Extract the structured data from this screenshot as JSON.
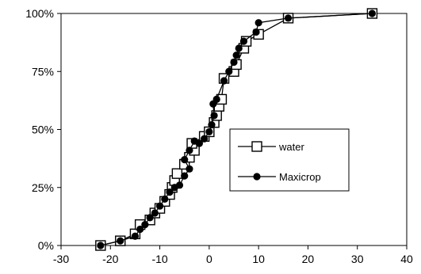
{
  "chart_data": {
    "type": "line",
    "title": "",
    "xlabel": "",
    "ylabel": "",
    "xlim": [
      -30,
      40
    ],
    "ylim": [
      0,
      100
    ],
    "x_ticks": [
      "-30",
      "-20",
      "-10",
      "0",
      "10",
      "20",
      "30",
      "40"
    ],
    "y_ticks": [
      "0%",
      "25%",
      "50%",
      "75%",
      "100%"
    ],
    "legend_position": "center-right",
    "grid": false,
    "series": [
      {
        "name": "water",
        "marker": "open-square",
        "color": "#000000",
        "points": [
          [
            -22,
            0
          ],
          [
            -18,
            2
          ],
          [
            -15,
            5
          ],
          [
            -14,
            9
          ],
          [
            -12,
            11
          ],
          [
            -11,
            14
          ],
          [
            -10,
            16
          ],
          [
            -9,
            19
          ],
          [
            -8,
            22
          ],
          [
            -7.5,
            25
          ],
          [
            -7,
            28
          ],
          [
            -6.5,
            31
          ],
          [
            -5,
            35
          ],
          [
            -4,
            38
          ],
          [
            -3,
            41
          ],
          [
            -3.5,
            44
          ],
          [
            -1,
            47
          ],
          [
            0,
            49
          ],
          [
            1,
            53
          ],
          [
            1.5,
            56
          ],
          [
            2,
            60
          ],
          [
            2.5,
            63
          ],
          [
            3,
            72
          ],
          [
            5,
            75
          ],
          [
            5.5,
            78
          ],
          [
            7,
            85
          ],
          [
            7.5,
            88
          ],
          [
            10,
            91
          ],
          [
            16,
            98
          ],
          [
            33,
            100
          ]
        ]
      },
      {
        "name": "Maxicrop",
        "marker": "filled-circle",
        "color": "#000000",
        "points": [
          [
            -22,
            0
          ],
          [
            -18,
            2
          ],
          [
            -15,
            4
          ],
          [
            -14,
            7
          ],
          [
            -13,
            9
          ],
          [
            -12,
            12
          ],
          [
            -11,
            14
          ],
          [
            -10,
            17
          ],
          [
            -9,
            20
          ],
          [
            -8,
            23
          ],
          [
            -7,
            25
          ],
          [
            -6,
            26
          ],
          [
            -5,
            30
          ],
          [
            -4,
            33
          ],
          [
            -5,
            37
          ],
          [
            -4,
            41
          ],
          [
            -3,
            45
          ],
          [
            -2,
            44
          ],
          [
            -1,
            46
          ],
          [
            0,
            49
          ],
          [
            0.5,
            52
          ],
          [
            1,
            56
          ],
          [
            0.8,
            61
          ],
          [
            1.5,
            63
          ],
          [
            3,
            71
          ],
          [
            4,
            75
          ],
          [
            5,
            79
          ],
          [
            5.5,
            82
          ],
          [
            6,
            85
          ],
          [
            7,
            88
          ],
          [
            9.5,
            92
          ],
          [
            10,
            96
          ],
          [
            16,
            98
          ],
          [
            33,
            100
          ]
        ]
      }
    ]
  }
}
